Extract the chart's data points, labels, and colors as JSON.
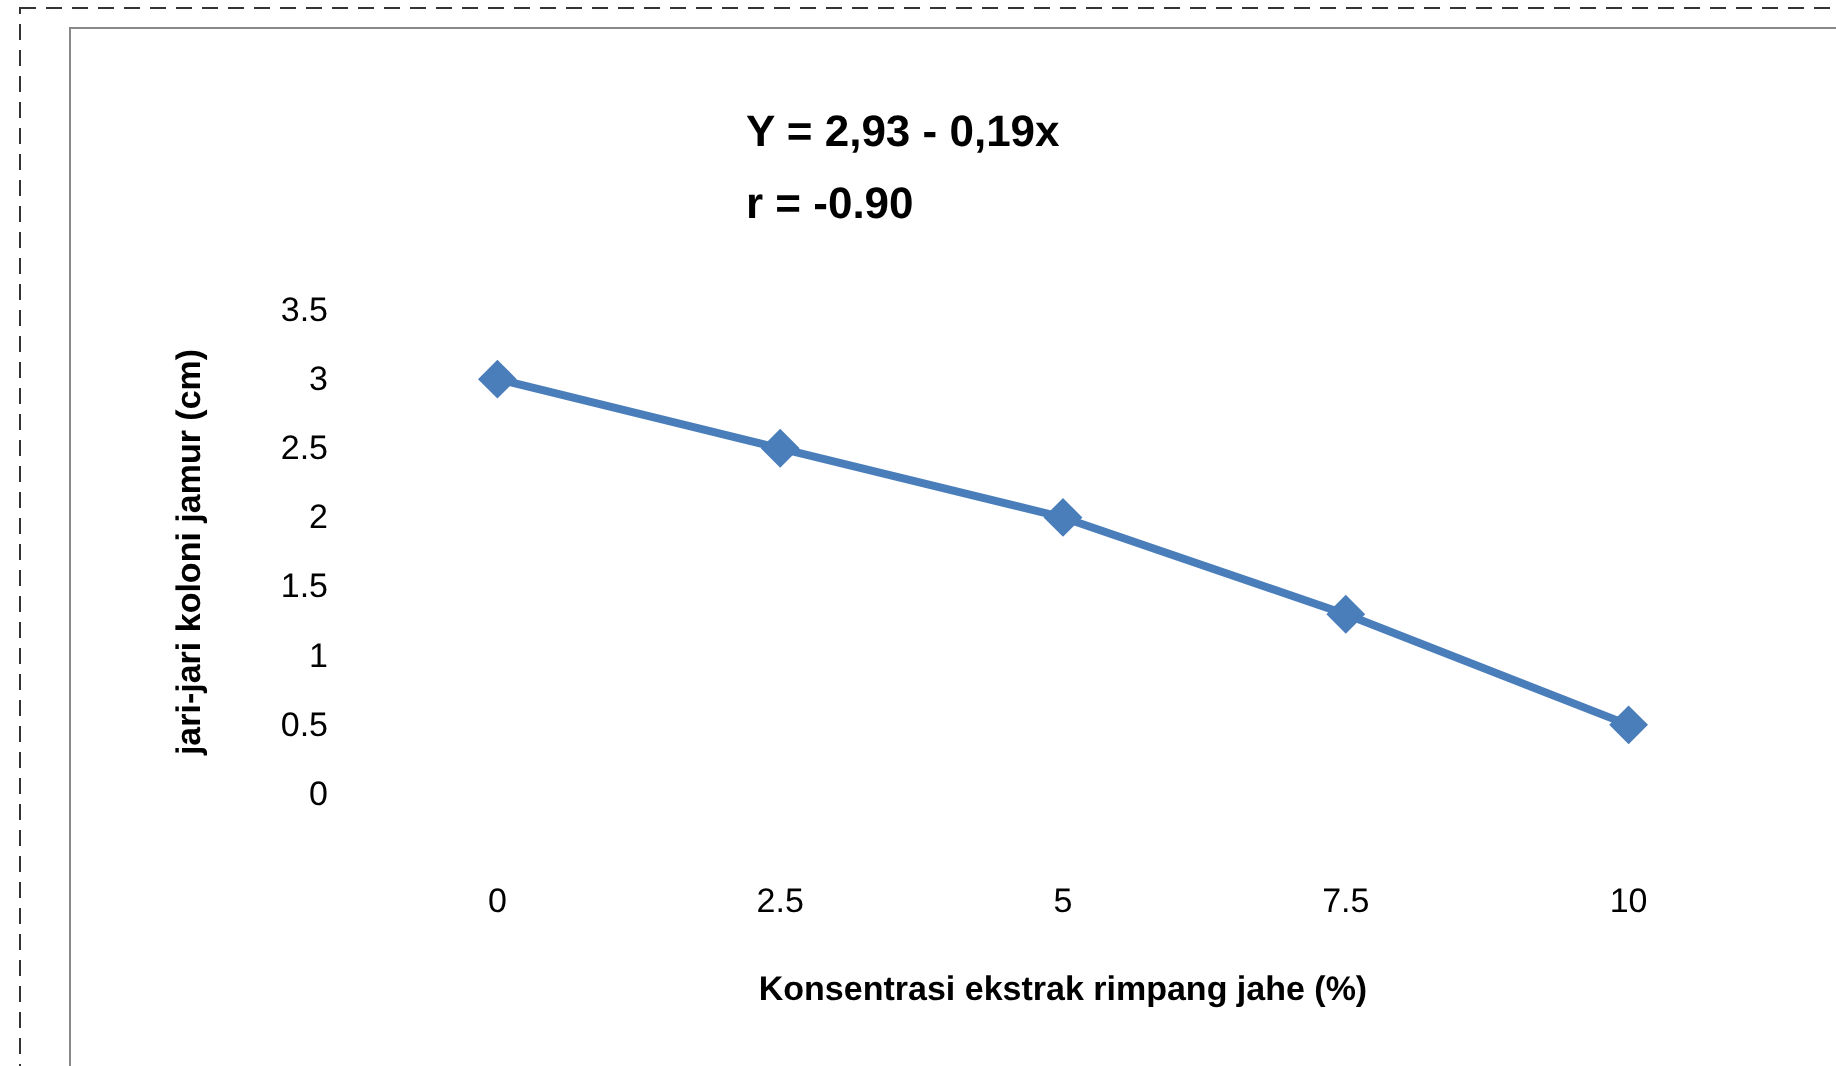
{
  "chart_data": {
    "type": "line",
    "xlabel": "Konsentrasi ekstrak rimpang jahe (%)",
    "ylabel": "jari-jari koloni jamur (cm)",
    "annotations": [
      "Y = 2,93 - 0,19x",
      "r = -0.90"
    ],
    "categories": [
      "0",
      "2.5",
      "5",
      "7.5",
      "10"
    ],
    "series": [
      {
        "color": "#4a7ebb",
        "values": [
          3,
          2.5,
          2,
          1.3,
          0.5
        ]
      }
    ],
    "ylim": [
      0,
      3.5
    ],
    "yticks": [
      0,
      0.5,
      1,
      1.5,
      2,
      2.5,
      3,
      3.5
    ],
    "grid": false,
    "marker": "diamond",
    "line_style": "solid"
  }
}
